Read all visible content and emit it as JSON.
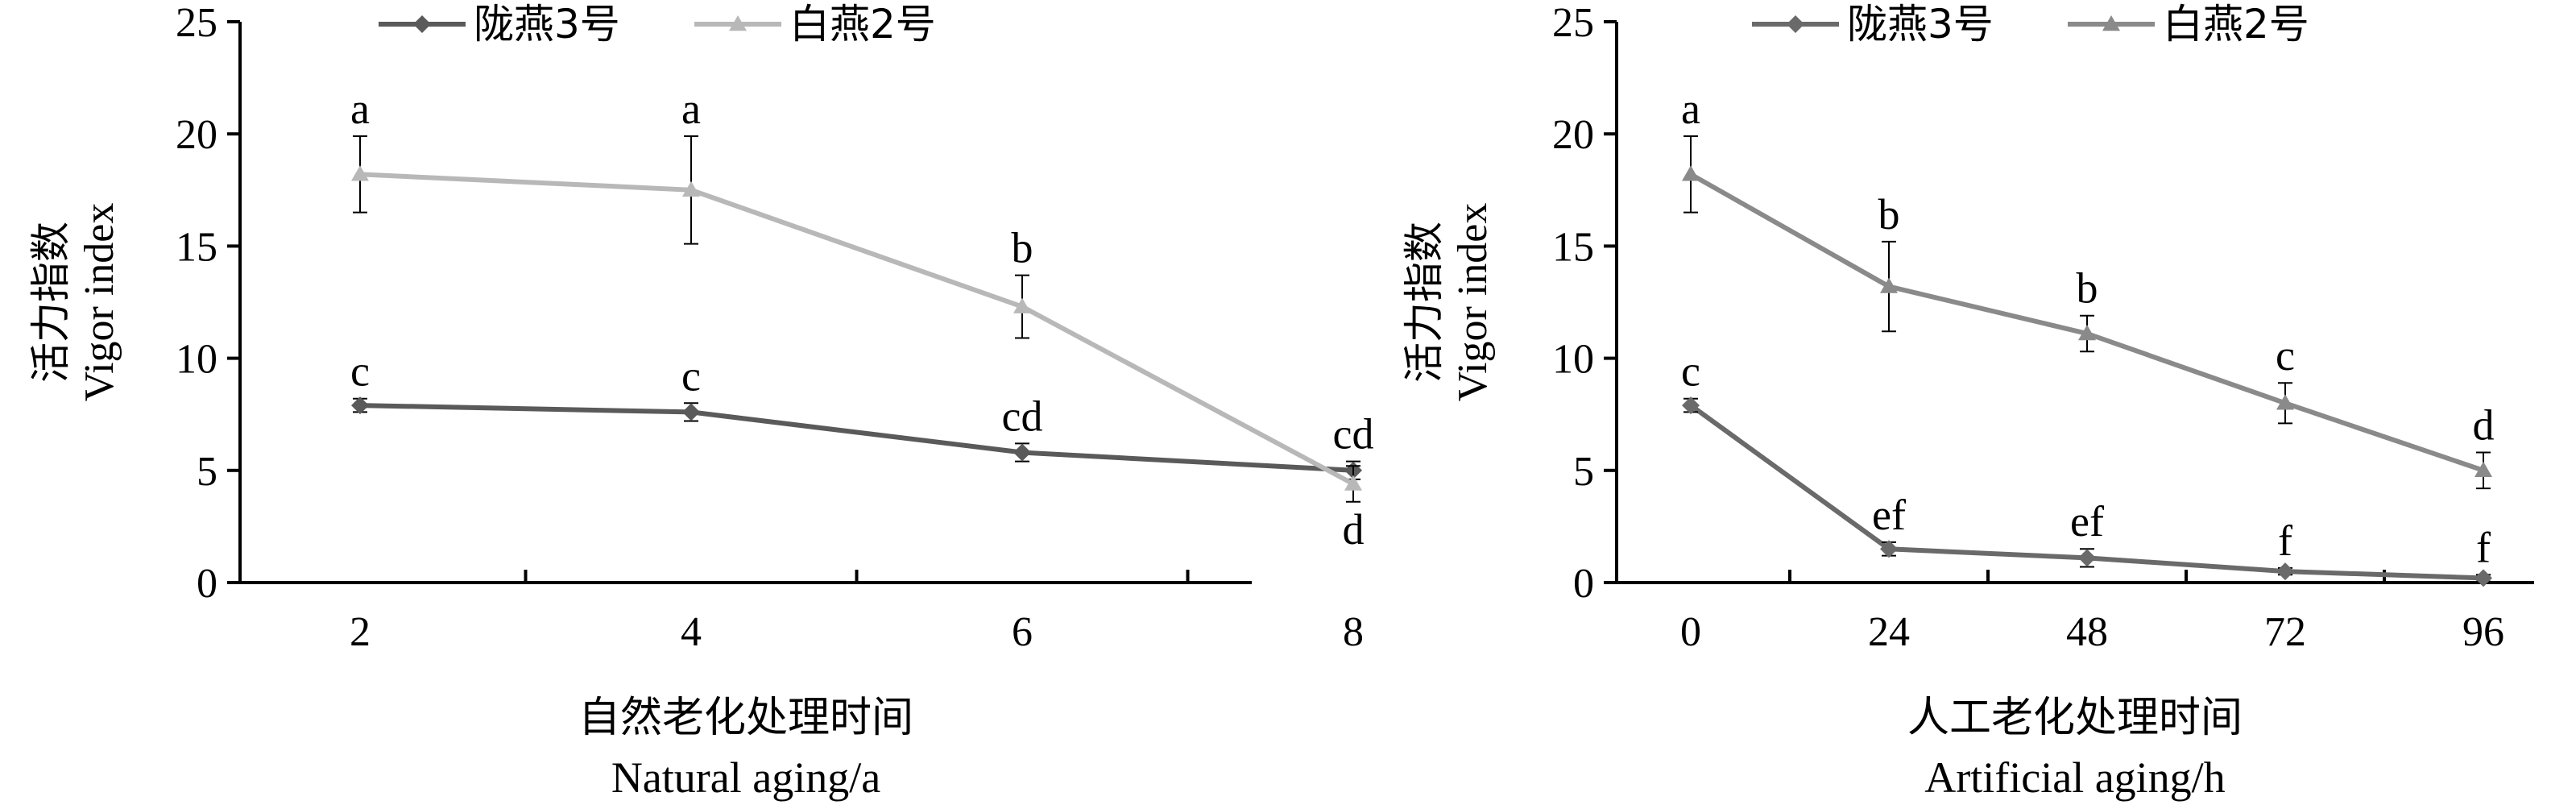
{
  "chart_data": [
    {
      "type": "line",
      "ylabel_cn": "活力指数",
      "ylabel_en": "Vigor index",
      "xlabel_cn": "自然老化处理时间",
      "xlabel_en": "Natural aging/a",
      "ylim": [
        0,
        25
      ],
      "yticks": [
        "0",
        "5",
        "10",
        "15",
        "20",
        "25"
      ],
      "x": [
        2,
        4,
        6,
        8
      ],
      "xticks": [
        "2",
        "4",
        "6",
        "8"
      ],
      "legend_position": "top",
      "series": [
        {
          "name": "陇燕3号",
          "color": "#5a5a5a",
          "marker": "diamond",
          "values": [
            7.9,
            7.6,
            5.8,
            5.0
          ],
          "errors": [
            0.3,
            0.4,
            0.4,
            0.4
          ],
          "labels": [
            "c",
            "c",
            "cd",
            "cd"
          ],
          "label_side": [
            "above",
            "above",
            "above",
            "above"
          ]
        },
        {
          "name": "白燕2号",
          "color": "#b8b8b8",
          "marker": "triangle",
          "values": [
            18.2,
            17.5,
            12.3,
            4.4
          ],
          "errors": [
            1.7,
            2.4,
            1.4,
            0.8
          ],
          "labels": [
            "a",
            "a",
            "b",
            "d"
          ],
          "label_side": [
            "above",
            "above",
            "above",
            "below"
          ]
        }
      ]
    },
    {
      "type": "line",
      "ylabel_cn": "活力指数",
      "ylabel_en": "Vigor index",
      "xlabel_cn": "人工老化处理时间",
      "xlabel_en": "Artificial aging/h",
      "ylim": [
        0,
        25
      ],
      "yticks": [
        "0",
        "5",
        "10",
        "15",
        "20",
        "25"
      ],
      "x": [
        0,
        24,
        48,
        72,
        96
      ],
      "xticks": [
        "0",
        "24",
        "48",
        "72",
        "96"
      ],
      "legend_position": "top",
      "series": [
        {
          "name": "陇燕3号",
          "color": "#6a6a6a",
          "marker": "diamond",
          "values": [
            7.9,
            1.5,
            1.1,
            0.5,
            0.2
          ],
          "errors": [
            0.3,
            0.3,
            0.4,
            0.15,
            0.15
          ],
          "labels": [
            "c",
            "ef",
            "ef",
            "f",
            "f"
          ],
          "label_side": [
            "above",
            "above",
            "above",
            "above",
            "above"
          ]
        },
        {
          "name": "白燕2号",
          "color": "#8a8a8a",
          "marker": "triangle",
          "values": [
            18.2,
            13.2,
            11.1,
            8.0,
            5.0
          ],
          "errors": [
            1.7,
            2.0,
            0.8,
            0.9,
            0.8
          ],
          "labels": [
            "a",
            "b",
            "b",
            "c",
            "d"
          ],
          "label_side": [
            "above",
            "above",
            "above",
            "above",
            "above"
          ]
        }
      ]
    }
  ]
}
